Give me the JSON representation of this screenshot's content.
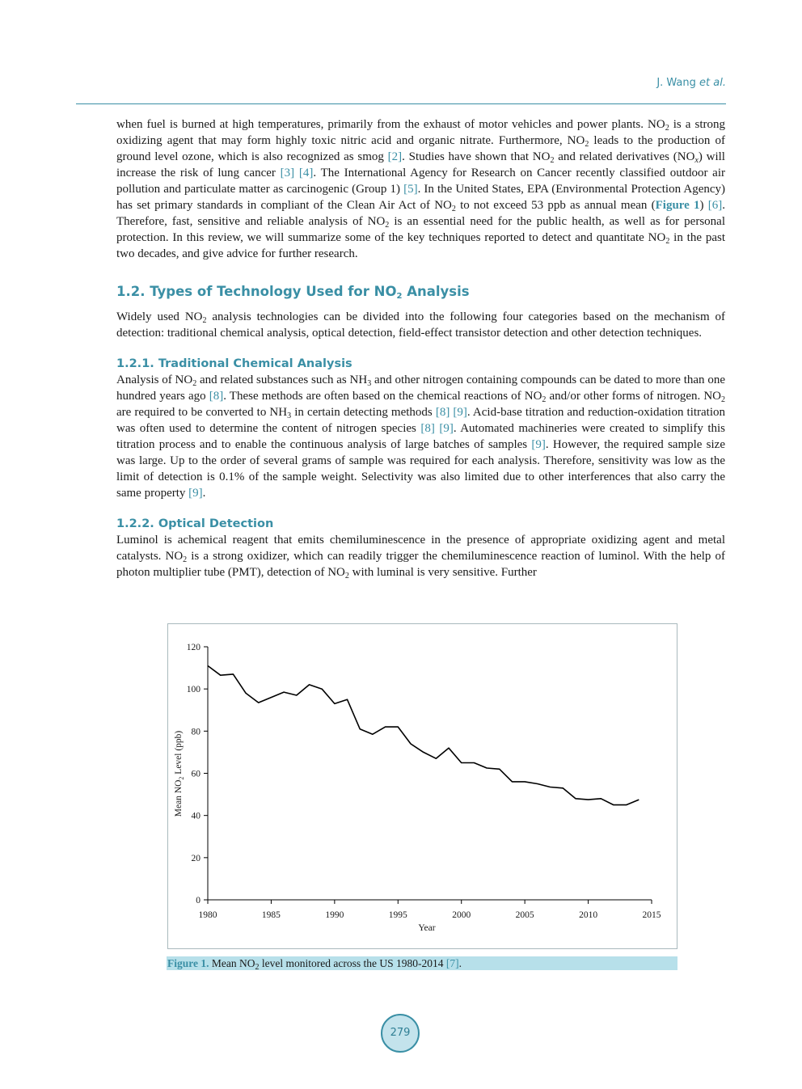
{
  "header": {
    "author": "J. Wang",
    "etal": "et al."
  },
  "intro": {
    "p_a": "when fuel is burned at high temperatures, primarily from the exhaust of motor vehicles and power plants. NO",
    "p_b": " is a strong oxidizing agent that may form highly toxic nitric acid and organic nitrate. Furthermore, NO",
    "p_c": " leads to the production of ground level ozone, which is also recognized as smog ",
    "ref_2": "[2]",
    "p_d": ". Studies have shown that NO",
    "p_e": " and related derivatives (NO",
    "p_x": "x",
    "p_f": ") will increase the risk of lung cancer ",
    "ref_3": "[3]",
    "ref_4": "[4]",
    "p_g": ". The International Agency for Research on Cancer recently classified outdoor air pollution and particulate matter as carcinogenic (Group 1) ",
    "ref_5": "[5]",
    "p_h": ". In the United States, EPA (Environmental Protection Agency) has set primary standards in compliant of the Clean Air Act of NO",
    "p_i": " to not exceed 53 ppb as annual mean (",
    "fig_ref": "Figure 1",
    "p_j": ") ",
    "ref_6": "[6]",
    "p_k": ". Therefore, fast, sensitive and reliable analysis of NO",
    "p_l": " is an essential need for the public health, as well as for personal protection. In this review, we will sum­marize some of the key techniques reported to detect and quantitate NO",
    "p_m": " in the past two decades, and give ad­vice for further research."
  },
  "section_1_2": {
    "heading_a": "1.2. Types of Technology Used for NO",
    "heading_b": " Analysis",
    "p_a": "Widely used NO",
    "p_b": " analysis technologies can be divided into the following four categories based on the mechan­ism of detection: traditional chemical analysis, optical detection, field-effect transistor detection and other detec­tion techniques."
  },
  "section_1_2_1": {
    "heading": "1.2.1. Traditional Chemical Analysis",
    "p_a": "Analysis of NO",
    "p_b": " and related substances such as NH",
    "p_c": " and other nitrogen containing compounds can be dated to more than one hundred years ago ",
    "ref_8a": "[8]",
    "p_d": ". These methods are often based on the chemical reactions of NO",
    "p_e": " and/or other forms of nitrogen. NO",
    "p_f": " are required to be converted to NH",
    "p_g": " in certain detecting methods ",
    "ref_8b": "[8]",
    "ref_9a": "[9]",
    "p_h": ". Acid-base titration and reduction-oxidation titration was often used to determine the content of nitrogen species ",
    "ref_8c": "[8]",
    "ref_9b": "[9]",
    "p_i": ". Automated machineries were created to simplify this titration process and to enable the continuous analysis of large batches of samples ",
    "ref_9c": "[9]",
    "p_j": ". However, the required sample size was large. Up to the order of several grams of sample was required for each analysis. Therefore, sensitivity was low as the limit of detection is 0.1% of the sample weight. Selectivity was also limited due to other interferences that also carry the same property ",
    "ref_9d": "[9]",
    "p_k": "."
  },
  "section_1_2_2": {
    "heading": "1.2.2. Optical Detection",
    "p_a": "Luminol is achemical reagent that emits chemiluminescence in the presence of appropriate oxidizing agent and metal catalysts. NO",
    "p_b": " is a strong oxidizer, which can readily trigger the chemiluminescence reaction of lu­minol. With the help of photon multiplier tube (PMT), detection of NO",
    "p_c": " with luminal is very sensitive. Further"
  },
  "sub2": "2",
  "sub3": "3",
  "caption": {
    "label": "Figure 1.",
    "text_a": " Mean NO",
    "text_b": " level monitored across the US 1980-2014 ",
    "ref": "[7]",
    "text_c": "."
  },
  "page_number": "279",
  "chart_data": {
    "type": "line",
    "title": "",
    "xlabel": "Year",
    "ylabel_a": "Mean NO",
    "ylabel_sub": "2",
    "ylabel_b": " Level (ppb)",
    "xlim": [
      1980,
      2015
    ],
    "ylim": [
      0,
      120
    ],
    "xticks": [
      1980,
      1985,
      1990,
      1995,
      2000,
      2005,
      2010,
      2015
    ],
    "yticks": [
      0,
      20,
      40,
      60,
      80,
      100,
      120
    ],
    "grid": false,
    "line_color": "#000000",
    "series": [
      {
        "x": [
          1980,
          1981,
          1982,
          1983,
          1984,
          1985,
          1986,
          1987,
          1988,
          1989,
          1990,
          1991,
          1992,
          1993,
          1994,
          1995,
          1996,
          1997,
          1998,
          1999,
          2000,
          2001,
          2002,
          2003,
          2004,
          2005,
          2006,
          2007,
          2008,
          2009,
          2010,
          2011,
          2012,
          2013,
          2014
        ],
        "values": [
          111,
          106.5,
          107,
          98,
          93.5,
          96,
          98.5,
          97,
          102,
          100,
          93,
          95,
          81,
          78.5,
          82,
          82,
          74,
          70,
          67,
          72,
          65,
          65,
          62.5,
          62,
          56,
          56,
          55,
          53.5,
          53,
          48,
          47.5,
          48,
          45,
          45,
          47.5
        ]
      }
    ]
  }
}
